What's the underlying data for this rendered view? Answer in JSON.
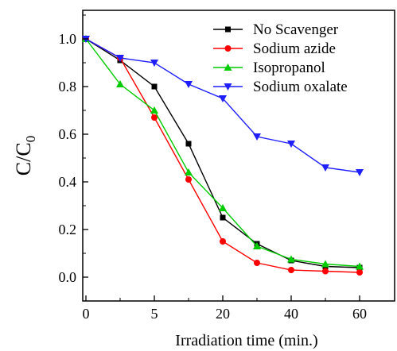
{
  "chart_data": {
    "type": "line",
    "xlabel": "Irradiation time (min.)",
    "ylabel_main": "C/C",
    "ylabel_sub": "0",
    "x_tick_labels": [
      "0",
      "5",
      "20",
      "40",
      "60"
    ],
    "x_tick_slots": [
      0,
      5,
      20,
      40,
      60
    ],
    "y_ticks": [
      0.0,
      0.2,
      0.4,
      0.6,
      0.8,
      1.0
    ],
    "y_tick_labels": [
      "0.0",
      "0.2",
      "0.4",
      "0.6",
      "0.8",
      "1.0"
    ],
    "ylim": [
      -0.1,
      1.12
    ],
    "x_slots": [
      0,
      2.5,
      5,
      7.5,
      10,
      12.5,
      15,
      17.5,
      20
    ],
    "legend_position": "top-right",
    "series": [
      {
        "name": "No Scavenger",
        "color": "#000000",
        "marker": "square",
        "x": [
          0,
          2.5,
          5,
          7.5,
          10,
          12.5,
          15,
          17.5,
          20
        ],
        "y": [
          1.0,
          0.91,
          0.8,
          0.56,
          0.25,
          0.14,
          0.07,
          0.045,
          0.04
        ]
      },
      {
        "name": "Sodium azide",
        "color": "#ff0000",
        "marker": "circle",
        "x": [
          0,
          2.5,
          5,
          7.5,
          10,
          12.5,
          15,
          17.5,
          20
        ],
        "y": [
          1.0,
          0.92,
          0.67,
          0.41,
          0.15,
          0.06,
          0.03,
          0.025,
          0.02
        ]
      },
      {
        "name": "Isopropanol",
        "color": "#00cc00",
        "marker": "triangle-up",
        "x": [
          0,
          2.5,
          5,
          7.5,
          10,
          12.5,
          15,
          17.5,
          20
        ],
        "y": [
          1.0,
          0.81,
          0.7,
          0.44,
          0.29,
          0.13,
          0.075,
          0.055,
          0.045
        ]
      },
      {
        "name": "Sodium oxalate",
        "color": "#1f1fff",
        "marker": "triangle-down",
        "x": [
          0,
          2.5,
          5,
          7.5,
          10,
          12.5,
          15,
          17.5,
          20
        ],
        "y": [
          1.0,
          0.92,
          0.9,
          0.81,
          0.75,
          0.59,
          0.56,
          0.46,
          0.44
        ]
      }
    ]
  }
}
